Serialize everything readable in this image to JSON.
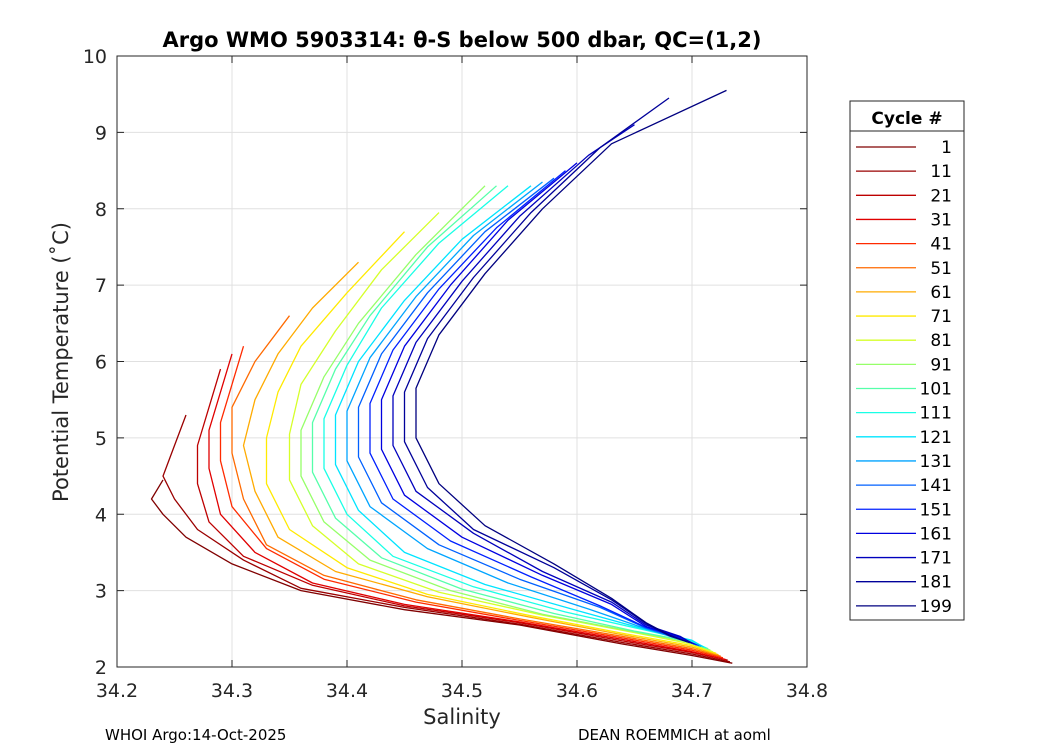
{
  "footer": {
    "left": "WHOI Argo:14-Oct-2025",
    "right": "DEAN ROEMMICH at aoml"
  },
  "chart_data": {
    "type": "line",
    "title": "Argo WMO 5903314: θ-S below 500 dbar,  QC=(1,2)",
    "xlabel": "Salinity",
    "ylabel": "Potential Temperature (˚C)",
    "xlim": [
      34.2,
      34.8
    ],
    "ylim": [
      2,
      10
    ],
    "xticks": [
      34.2,
      34.3,
      34.4,
      34.5,
      34.6,
      34.7,
      34.8
    ],
    "yticks": [
      2,
      3,
      4,
      5,
      6,
      7,
      8,
      9,
      10
    ],
    "grid": true,
    "legend": {
      "title": "Cycle #",
      "placement": "right",
      "entries": [
        {
          "label": "1",
          "color": "#800000"
        },
        {
          "label": "11",
          "color": "#9a0000"
        },
        {
          "label": "21",
          "color": "#bd0000"
        },
        {
          "label": "31",
          "color": "#e00000"
        },
        {
          "label": "41",
          "color": "#ff2a00"
        },
        {
          "label": "51",
          "color": "#ff6a00"
        },
        {
          "label": "61",
          "color": "#ffab00"
        },
        {
          "label": "71",
          "color": "#ffea00"
        },
        {
          "label": "81",
          "color": "#d6ff29"
        },
        {
          "label": "91",
          "color": "#96ff69"
        },
        {
          "label": "101",
          "color": "#55ffaa"
        },
        {
          "label": "111",
          "color": "#19ffe6"
        },
        {
          "label": "121",
          "color": "#00e4ff"
        },
        {
          "label": "131",
          "color": "#00a4ff"
        },
        {
          "label": "141",
          "color": "#0060ff"
        },
        {
          "label": "151",
          "color": "#0020ff"
        },
        {
          "label": "161",
          "color": "#0000e0"
        },
        {
          "label": "171",
          "color": "#0000bd"
        },
        {
          "label": "181",
          "color": "#00009a"
        },
        {
          "label": "199",
          "color": "#000080"
        }
      ]
    },
    "series": [
      {
        "name": "1",
        "x": [
          34.735,
          34.7,
          34.64,
          34.55,
          34.45,
          34.36,
          34.3,
          34.26,
          34.24,
          34.23,
          34.24
        ],
        "y": [
          2.05,
          2.15,
          2.3,
          2.55,
          2.75,
          3.0,
          3.35,
          3.7,
          4.0,
          4.2,
          4.45
        ]
      },
      {
        "name": "11",
        "x": [
          34.733,
          34.7,
          34.64,
          34.55,
          34.45,
          34.36,
          34.31,
          34.27,
          34.25,
          34.24,
          34.25,
          34.26
        ],
        "y": [
          2.07,
          2.17,
          2.32,
          2.56,
          2.78,
          3.03,
          3.4,
          3.8,
          4.2,
          4.5,
          4.9,
          5.3
        ]
      },
      {
        "name": "21",
        "x": [
          34.731,
          34.7,
          34.64,
          34.55,
          34.45,
          34.37,
          34.31,
          34.28,
          34.27,
          34.27,
          34.28,
          34.29
        ],
        "y": [
          2.09,
          2.19,
          2.34,
          2.58,
          2.8,
          3.07,
          3.45,
          3.9,
          4.4,
          4.9,
          5.4,
          5.9
        ]
      },
      {
        "name": "31",
        "x": [
          34.729,
          34.7,
          34.64,
          34.55,
          34.45,
          34.37,
          34.32,
          34.29,
          34.28,
          34.28,
          34.29,
          34.3
        ],
        "y": [
          2.1,
          2.2,
          2.36,
          2.59,
          2.82,
          3.1,
          3.5,
          4.0,
          4.6,
          5.1,
          5.6,
          6.1
        ]
      },
      {
        "name": "41",
        "x": [
          34.727,
          34.7,
          34.64,
          34.55,
          34.46,
          34.38,
          34.33,
          34.3,
          34.29,
          34.29,
          34.3,
          34.31
        ],
        "y": [
          2.12,
          2.22,
          2.38,
          2.61,
          2.85,
          3.15,
          3.55,
          4.1,
          4.7,
          5.2,
          5.7,
          6.2
        ]
      },
      {
        "name": "51",
        "x": [
          34.725,
          34.7,
          34.64,
          34.55,
          34.46,
          34.38,
          34.33,
          34.31,
          34.3,
          34.3,
          34.32,
          34.35
        ],
        "y": [
          2.14,
          2.24,
          2.4,
          2.63,
          2.88,
          3.2,
          3.6,
          4.2,
          4.8,
          5.4,
          6.0,
          6.6
        ]
      },
      {
        "name": "61",
        "x": [
          34.723,
          34.7,
          34.64,
          34.56,
          34.47,
          34.39,
          34.34,
          34.32,
          34.31,
          34.32,
          34.34,
          34.37,
          34.41
        ],
        "y": [
          2.16,
          2.26,
          2.42,
          2.65,
          2.92,
          3.25,
          3.7,
          4.3,
          4.9,
          5.5,
          6.1,
          6.7,
          7.3
        ]
      },
      {
        "name": "71",
        "x": [
          34.721,
          34.7,
          34.64,
          34.56,
          34.47,
          34.4,
          34.35,
          34.33,
          34.33,
          34.34,
          34.36,
          34.4,
          34.45
        ],
        "y": [
          2.18,
          2.28,
          2.44,
          2.67,
          2.95,
          3.3,
          3.8,
          4.4,
          5.0,
          5.6,
          6.2,
          6.9,
          7.7
        ]
      },
      {
        "name": "81",
        "x": [
          34.718,
          34.7,
          34.65,
          34.57,
          34.48,
          34.41,
          34.37,
          34.35,
          34.35,
          34.36,
          34.39,
          34.43,
          34.48
        ],
        "y": [
          2.2,
          2.3,
          2.45,
          2.68,
          2.98,
          3.35,
          3.85,
          4.45,
          5.05,
          5.7,
          6.4,
          7.2,
          7.95
        ]
      },
      {
        "name": "91",
        "x": [
          34.716,
          34.7,
          34.65,
          34.57,
          34.49,
          34.42,
          34.38,
          34.36,
          34.36,
          34.38,
          34.41,
          34.46,
          34.52
        ],
        "y": [
          2.22,
          2.32,
          2.46,
          2.69,
          3.0,
          3.4,
          3.9,
          4.5,
          5.1,
          5.8,
          6.5,
          7.4,
          8.3
        ]
      },
      {
        "name": "101",
        "x": [
          34.714,
          34.7,
          34.65,
          34.58,
          34.5,
          34.43,
          34.39,
          34.37,
          34.37,
          34.39,
          34.42,
          34.47,
          34.53
        ],
        "y": [
          2.24,
          2.33,
          2.47,
          2.7,
          3.02,
          3.43,
          3.95,
          4.55,
          5.2,
          5.9,
          6.6,
          7.5,
          8.3
        ]
      },
      {
        "name": "111",
        "x": [
          34.712,
          34.7,
          34.66,
          34.59,
          34.51,
          34.44,
          34.4,
          34.38,
          34.38,
          34.4,
          34.43,
          34.48,
          34.54
        ],
        "y": [
          2.25,
          2.34,
          2.48,
          2.72,
          3.05,
          3.45,
          4.0,
          4.6,
          5.25,
          5.95,
          6.7,
          7.55,
          8.3
        ]
      },
      {
        "name": "121",
        "x": [
          34.71,
          34.7,
          34.66,
          34.6,
          34.52,
          34.45,
          34.41,
          34.39,
          34.39,
          34.41,
          34.45,
          34.5,
          34.56
        ],
        "y": [
          2.26,
          2.35,
          2.49,
          2.74,
          3.08,
          3.5,
          4.05,
          4.65,
          5.3,
          6.0,
          6.8,
          7.6,
          8.3
        ]
      },
      {
        "name": "131",
        "x": [
          34.708,
          34.69,
          34.66,
          34.61,
          34.54,
          34.47,
          34.42,
          34.4,
          34.4,
          34.42,
          34.46,
          34.51,
          34.57
        ],
        "y": [
          2.27,
          2.36,
          2.5,
          2.76,
          3.1,
          3.55,
          4.1,
          4.7,
          5.35,
          6.05,
          6.85,
          7.65,
          8.35
        ]
      },
      {
        "name": "141",
        "x": [
          34.706,
          34.69,
          34.66,
          34.62,
          34.55,
          34.48,
          34.43,
          34.41,
          34.41,
          34.43,
          34.47,
          34.52,
          34.58
        ],
        "y": [
          2.28,
          2.37,
          2.51,
          2.78,
          3.15,
          3.6,
          4.15,
          4.75,
          5.4,
          6.1,
          6.9,
          7.7,
          8.4
        ]
      },
      {
        "name": "151",
        "x": [
          34.704,
          34.69,
          34.66,
          34.62,
          34.56,
          34.49,
          34.44,
          34.42,
          34.42,
          34.44,
          34.48,
          34.53,
          34.59
        ],
        "y": [
          2.29,
          2.38,
          2.52,
          2.8,
          3.18,
          3.65,
          4.2,
          4.8,
          5.45,
          6.15,
          6.95,
          7.75,
          8.5
        ]
      },
      {
        "name": "161",
        "x": [
          34.702,
          34.69,
          34.66,
          34.63,
          34.57,
          34.5,
          34.45,
          34.43,
          34.43,
          34.45,
          34.49,
          34.54,
          34.6
        ],
        "y": [
          2.3,
          2.39,
          2.53,
          2.82,
          3.2,
          3.7,
          4.25,
          4.85,
          5.5,
          6.2,
          7.0,
          7.85,
          8.6
        ]
      },
      {
        "name": "171",
        "x": [
          34.7,
          34.69,
          34.66,
          34.63,
          34.57,
          34.51,
          34.46,
          34.44,
          34.44,
          34.46,
          34.5,
          34.55,
          34.61,
          34.65
        ],
        "y": [
          2.31,
          2.4,
          2.55,
          2.85,
          3.25,
          3.75,
          4.3,
          4.9,
          5.55,
          6.25,
          7.05,
          7.9,
          8.7,
          9.1
        ]
      },
      {
        "name": "181",
        "x": [
          34.698,
          34.68,
          34.66,
          34.63,
          34.58,
          34.51,
          34.47,
          34.45,
          34.45,
          34.47,
          34.51,
          34.56,
          34.62,
          34.68
        ],
        "y": [
          2.32,
          2.41,
          2.57,
          2.88,
          3.3,
          3.8,
          4.35,
          4.95,
          5.6,
          6.3,
          7.1,
          7.95,
          8.8,
          9.45
        ]
      },
      {
        "name": "199",
        "x": [
          34.696,
          34.68,
          34.66,
          34.63,
          34.58,
          34.52,
          34.48,
          34.46,
          34.46,
          34.48,
          34.52,
          34.57,
          34.63,
          34.73
        ],
        "y": [
          2.33,
          2.42,
          2.58,
          2.9,
          3.35,
          3.85,
          4.4,
          5.0,
          5.65,
          6.35,
          7.15,
          8.0,
          8.85,
          9.55
        ]
      }
    ]
  }
}
